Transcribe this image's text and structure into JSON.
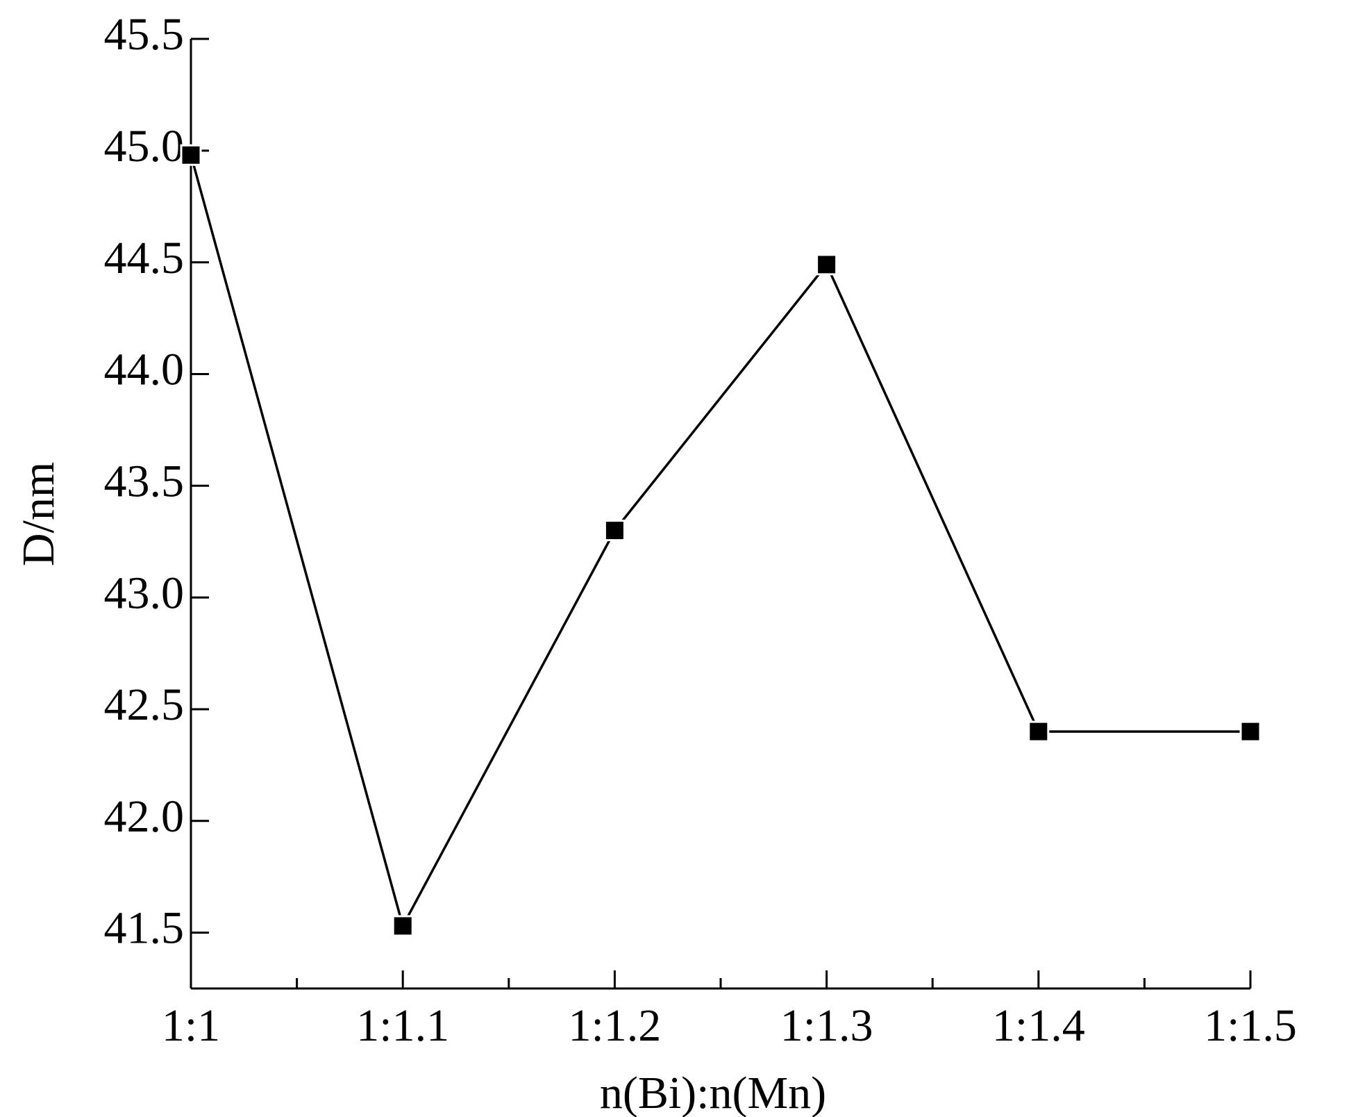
{
  "chart_data": {
    "type": "line",
    "x_label": "n(Bi):n(Mn)",
    "y_label": "D/nm",
    "categories": [
      "1:1",
      "1:1.1",
      "1:1.2",
      "1:1.3",
      "1:1.4",
      "1:1.5"
    ],
    "series": [
      {
        "color": "#000000",
        "values": [
          44.98,
          41.53,
          43.3,
          44.49,
          42.4,
          42.4
        ]
      }
    ],
    "ylim": [
      41.25,
      45.5
    ],
    "yticks": [
      {
        "value": 41.5,
        "label": "41.5"
      },
      {
        "value": 42,
        "label": "42.0"
      },
      {
        "value": 42.5,
        "label": "42.5"
      },
      {
        "value": 43,
        "label": "43.0"
      },
      {
        "value": 43.5,
        "label": "43.5"
      },
      {
        "value": 44,
        "label": "44.0"
      },
      {
        "value": 44.5,
        "label": "44.5"
      },
      {
        "value": 45,
        "label": "45.0"
      },
      {
        "value": 45.5,
        "label": "45.5"
      }
    ],
    "grid": false
  }
}
